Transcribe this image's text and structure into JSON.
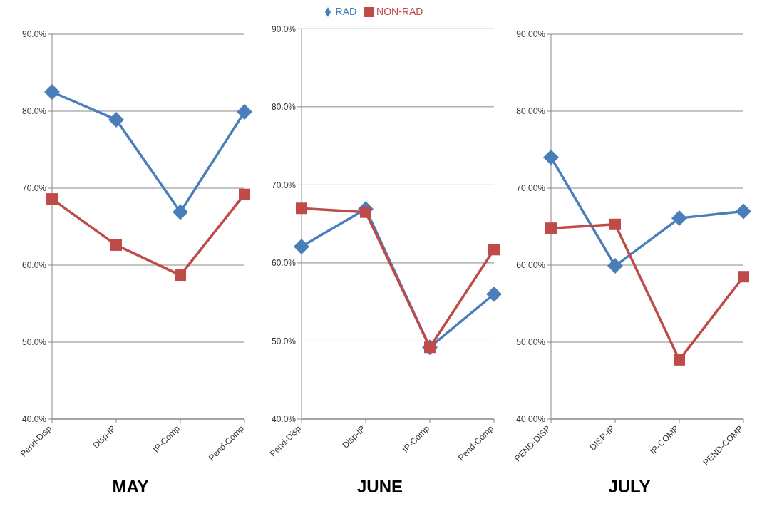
{
  "chart_data": [
    {
      "type": "line",
      "title": "MAY",
      "categories": [
        "Pend-Disp",
        "Disp-IP",
        "IP-Comp",
        "Pend-Comp"
      ],
      "series": [
        {
          "color": "#4a7ebb",
          "marker": "diamond",
          "values": [
            82.5,
            78.9,
            66.9,
            79.9
          ]
        },
        {
          "color": "#be4b48",
          "marker": "square",
          "values": [
            68.6,
            62.6,
            58.7,
            69.2
          ]
        }
      ],
      "ylim": [
        40,
        90
      ],
      "yticks": [
        {
          "value": 40,
          "label": "40.0%"
        },
        {
          "value": 50,
          "label": "50.0%"
        },
        {
          "value": 60,
          "label": "60.0%"
        },
        {
          "value": 70,
          "label": "70.0%"
        },
        {
          "value": 80,
          "label": "80.0%"
        },
        {
          "value": 90,
          "label": "90.0%"
        }
      ],
      "grid": "y",
      "legend": false
    },
    {
      "type": "line",
      "title": "JUNE",
      "categories": [
        "Pend-Disp",
        "Disp-IP",
        "IP-Comp",
        "Pend-Comp"
      ],
      "series": [
        {
          "name": "RAD",
          "color": "#4a7ebb",
          "marker": "diamond",
          "values": [
            62.1,
            66.9,
            49.2,
            56.0
          ]
        },
        {
          "name": "NON-RAD",
          "color": "#be4b48",
          "marker": "square",
          "values": [
            67.0,
            66.5,
            49.2,
            61.7
          ]
        }
      ],
      "ylim": [
        40,
        90
      ],
      "yticks": [
        {
          "value": 40,
          "label": "40.0%"
        },
        {
          "value": 50,
          "label": "50.0%"
        },
        {
          "value": 60,
          "label": "60.0%"
        },
        {
          "value": 70,
          "label": "70.0%"
        },
        {
          "value": 80,
          "label": "80.0%"
        },
        {
          "value": 90,
          "label": "90.0%"
        }
      ],
      "grid": "y",
      "legend": "top"
    },
    {
      "type": "line",
      "title": "JULY",
      "categories": [
        "PEND-DISP",
        "DISP-IP",
        "IP-COMP",
        "PEND-COMP"
      ],
      "series": [
        {
          "color": "#4a7ebb",
          "marker": "diamond",
          "values": [
            74.0,
            59.9,
            66.1,
            67.0
          ]
        },
        {
          "color": "#be4b48",
          "marker": "square",
          "values": [
            64.8,
            65.3,
            47.7,
            58.5
          ]
        }
      ],
      "ylim": [
        40,
        90
      ],
      "yticks": [
        {
          "value": 40,
          "label": "40.00%"
        },
        {
          "value": 50,
          "label": "50.00%"
        },
        {
          "value": 60,
          "label": "60.00%"
        },
        {
          "value": 70,
          "label": "70.00%"
        },
        {
          "value": 80,
          "label": "80.00%"
        },
        {
          "value": 90,
          "label": "90.00%"
        }
      ],
      "grid": "y",
      "legend": false
    }
  ]
}
